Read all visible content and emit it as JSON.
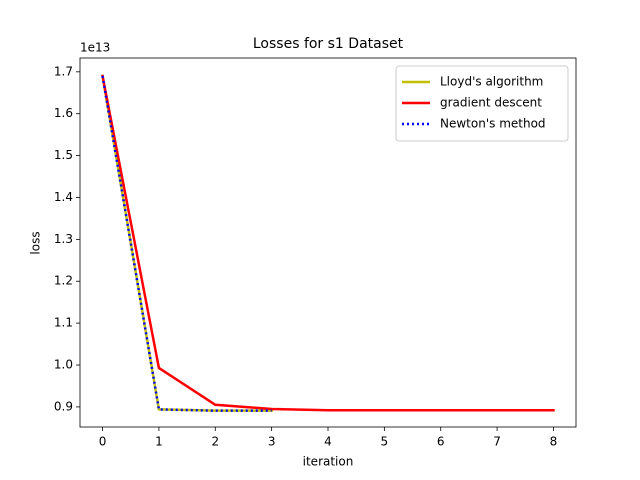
{
  "chart_data": {
    "type": "line",
    "title": "Losses for s1 Dataset",
    "x_label": "iteration",
    "y_label": "loss",
    "y_offset_label": "1e13",
    "xlim": [
      -0.4,
      8.4
    ],
    "ylim": [
      0.852,
      1.733
    ],
    "xticks": [
      0,
      1,
      2,
      3,
      4,
      5,
      6,
      7,
      8
    ],
    "yticks": [
      0.9,
      {
        "value": 1.0,
        "label": "1.0"
      },
      1.1,
      1.2,
      1.3,
      1.4,
      1.5,
      1.6,
      1.7
    ],
    "legend": "upper right",
    "series": [
      {
        "name": "Lloyd's algorithm",
        "color": "#bfbf00",
        "linestyle": "solid",
        "x": [
          0,
          1,
          2,
          3
        ],
        "values": [
          1.69,
          0.894,
          0.891,
          0.891
        ]
      },
      {
        "name": "gradient descent",
        "color": "#ff0000",
        "linestyle": "solid",
        "x": [
          0,
          1,
          2,
          3,
          4,
          5,
          6,
          7,
          8
        ],
        "values": [
          1.69,
          0.993,
          0.905,
          0.895,
          0.892,
          0.892,
          0.892,
          0.892,
          0.892
        ]
      },
      {
        "name": "Newton's method",
        "color": "#0000ff",
        "linestyle": "dotted",
        "x": [
          0,
          1,
          2,
          3
        ],
        "values": [
          1.69,
          0.894,
          0.891,
          0.891
        ]
      }
    ]
  }
}
